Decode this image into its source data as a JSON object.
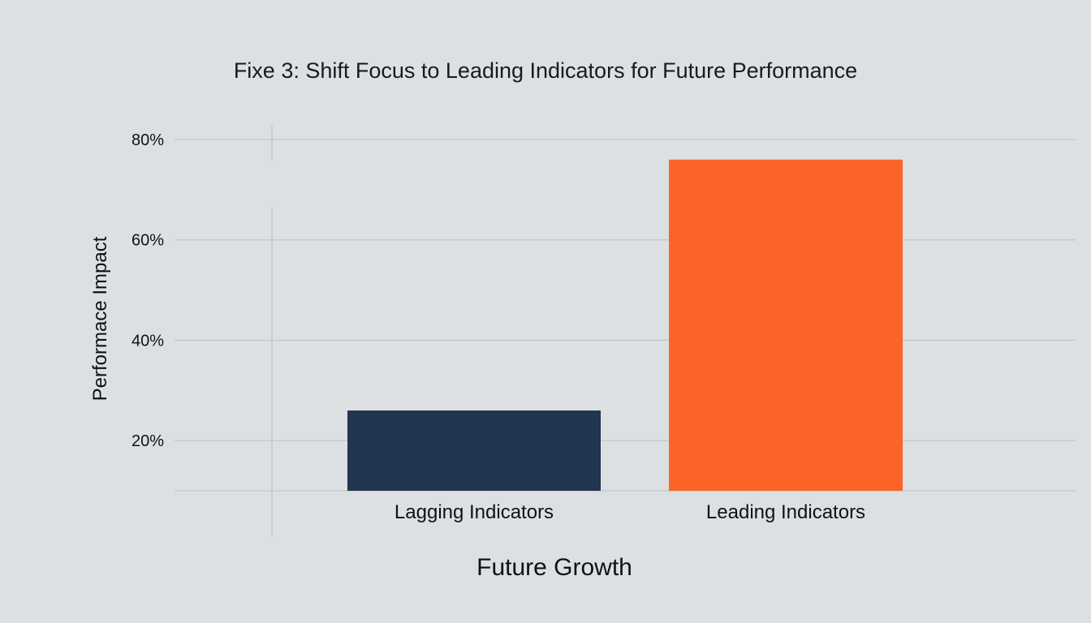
{
  "chart_data": {
    "type": "bar",
    "title": "Fixe 3: Shift Focus to Leading Indicators for Future Performance",
    "xlabel": "Future Growth",
    "ylabel": "Performace Impact",
    "categories": [
      "Lagging Indicators",
      "Leading Indicators"
    ],
    "values": [
      26,
      76
    ],
    "colors": [
      "#21354f",
      "#fb6426"
    ],
    "ylim": [
      10,
      80
    ],
    "yticks": [
      20,
      40,
      60,
      80
    ],
    "ytick_labels": [
      "20%",
      "40%",
      "60%",
      "80%"
    ],
    "grid": true,
    "background": "#dde0e3"
  }
}
